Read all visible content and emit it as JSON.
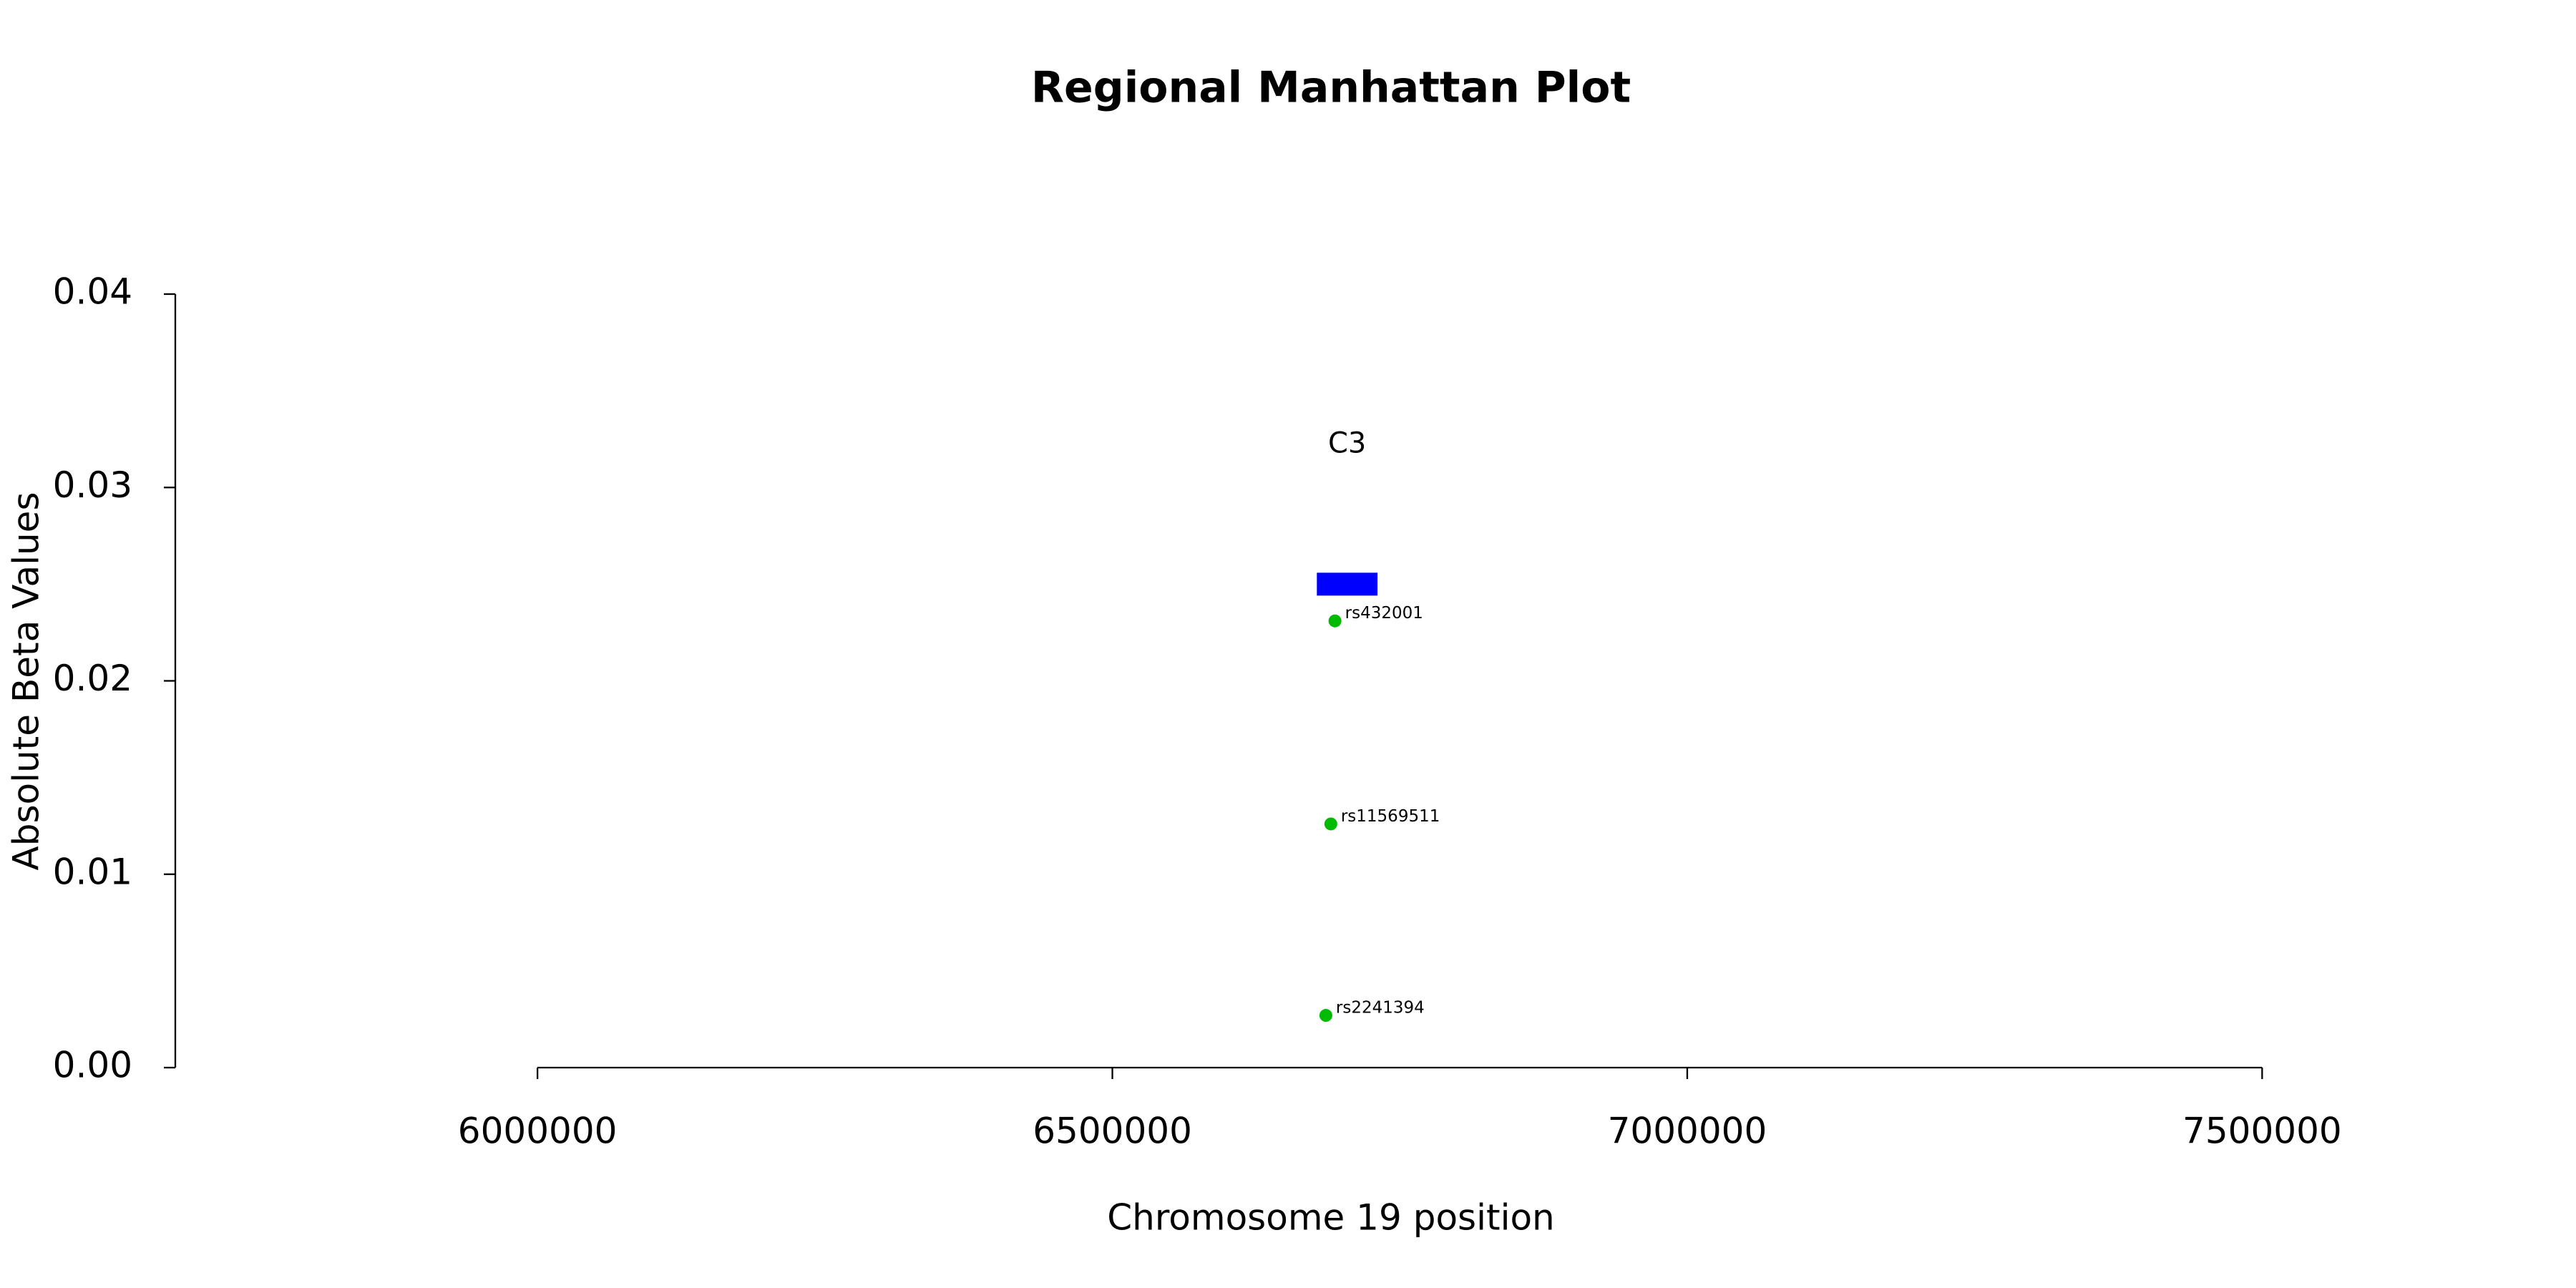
{
  "chart_data": {
    "type": "scatter",
    "title": "Regional Manhattan Plot",
    "xlabel": "Chromosome 19 position",
    "ylabel": "Absolute Beta Values",
    "x": [
      6693600,
      6690000,
      6685700
    ],
    "values": [
      0.0231,
      0.0126,
      0.0027
    ],
    "point_labels": [
      "rs432001",
      "rs11569511",
      "rs2241394"
    ],
    "color": "#00bb00",
    "genes": [
      {
        "name": "C3",
        "start": 6677846,
        "end": 6730573,
        "y": 0.025,
        "color": "#0000ff"
      }
    ],
    "xlim": [
      5685000,
      7740000
    ],
    "xticks": [
      6000000,
      6500000,
      7000000,
      7500000
    ],
    "ylim": [
      0,
      0.04
    ],
    "yticks": [
      {
        "value": 0,
        "label": "0.00"
      },
      0.01,
      0.02,
      0.03,
      0.04
    ],
    "grid": false
  }
}
